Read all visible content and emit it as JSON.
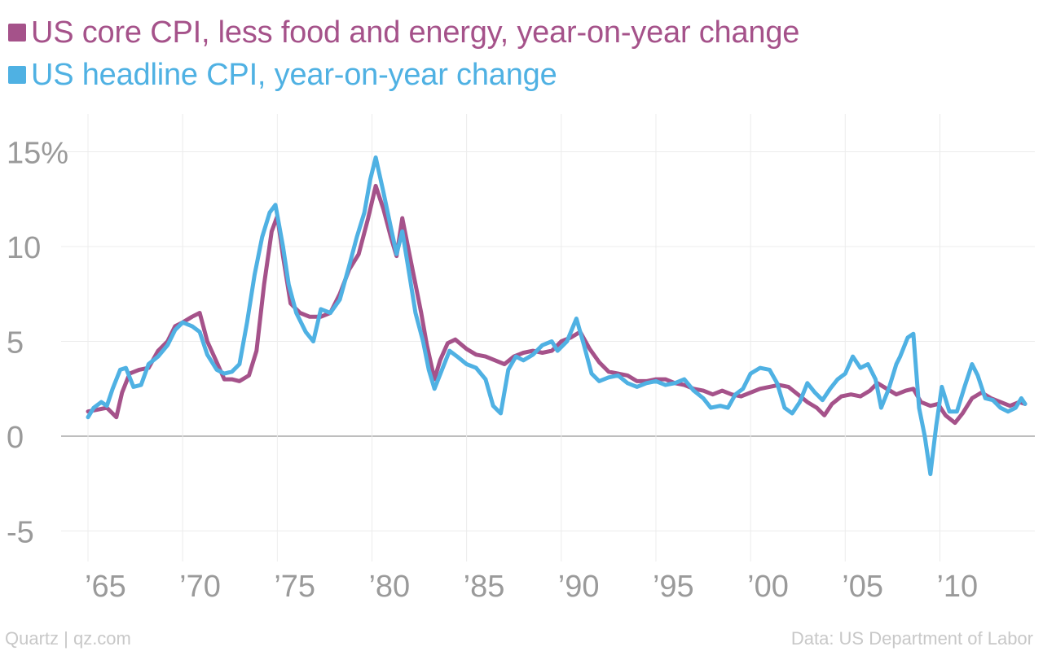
{
  "legend": [
    {
      "label": "US core CPI, less food and energy, year-on-year change",
      "color": "#a5528a"
    },
    {
      "label": "US headline CPI, year-on-year change",
      "color": "#4fb1e3"
    }
  ],
  "footer": {
    "source_left": "Quartz | qz.com",
    "source_right": "Data: US Department of Labor"
  },
  "chart_data": {
    "type": "line",
    "title": "",
    "xlabel": "",
    "ylabel": "",
    "xlim": [
      1965,
      2014.5
    ],
    "ylim": [
      -7,
      16
    ],
    "y_ticks": [
      15,
      10,
      5,
      0,
      -5
    ],
    "y_tick_labels": [
      "15%",
      "10",
      "5",
      "0",
      "-5"
    ],
    "x_ticks": [
      1965,
      1970,
      1975,
      1980,
      1985,
      1990,
      1995,
      2000,
      2005,
      2010
    ],
    "x_tick_labels": [
      "’65",
      "’70",
      "’75",
      "’80",
      "’85",
      "’90",
      "’95",
      "’00",
      "’05",
      "’10"
    ],
    "grid": true,
    "legend_position": "top-left",
    "series": [
      {
        "name": "US core CPI, less food and energy, year-on-year change",
        "color": "#a5528a",
        "points": [
          [
            1965.0,
            1.3
          ],
          [
            1965.5,
            1.4
          ],
          [
            1966.0,
            1.5
          ],
          [
            1966.5,
            1.0
          ],
          [
            1966.8,
            2.3
          ],
          [
            1967.2,
            3.3
          ],
          [
            1967.7,
            3.5
          ],
          [
            1968.2,
            3.6
          ],
          [
            1968.7,
            4.5
          ],
          [
            1969.2,
            5.0
          ],
          [
            1969.6,
            5.8
          ],
          [
            1970.0,
            6.0
          ],
          [
            1970.5,
            6.3
          ],
          [
            1970.9,
            6.5
          ],
          [
            1971.3,
            5.0
          ],
          [
            1971.8,
            3.9
          ],
          [
            1972.2,
            3.0
          ],
          [
            1972.6,
            3.0
          ],
          [
            1973.0,
            2.9
          ],
          [
            1973.5,
            3.2
          ],
          [
            1973.9,
            4.5
          ],
          [
            1974.3,
            8.0
          ],
          [
            1974.7,
            10.8
          ],
          [
            1975.0,
            11.6
          ],
          [
            1975.3,
            9.5
          ],
          [
            1975.7,
            7.0
          ],
          [
            1976.2,
            6.5
          ],
          [
            1976.7,
            6.3
          ],
          [
            1977.3,
            6.3
          ],
          [
            1977.8,
            6.5
          ],
          [
            1978.3,
            7.5
          ],
          [
            1978.8,
            8.8
          ],
          [
            1979.3,
            9.6
          ],
          [
            1979.8,
            11.5
          ],
          [
            1980.2,
            13.2
          ],
          [
            1980.6,
            12.0
          ],
          [
            1981.0,
            10.5
          ],
          [
            1981.3,
            9.5
          ],
          [
            1981.6,
            11.5
          ],
          [
            1981.8,
            10.5
          ],
          [
            1982.2,
            8.5
          ],
          [
            1982.6,
            6.5
          ],
          [
            1982.9,
            4.8
          ],
          [
            1983.3,
            3.0
          ],
          [
            1983.6,
            4.0
          ],
          [
            1984.0,
            4.9
          ],
          [
            1984.4,
            5.1
          ],
          [
            1985.0,
            4.6
          ],
          [
            1985.5,
            4.3
          ],
          [
            1986.0,
            4.2
          ],
          [
            1986.5,
            4.0
          ],
          [
            1987.0,
            3.8
          ],
          [
            1987.5,
            4.2
          ],
          [
            1988.0,
            4.4
          ],
          [
            1988.5,
            4.5
          ],
          [
            1989.0,
            4.4
          ],
          [
            1989.5,
            4.5
          ],
          [
            1990.0,
            5.0
          ],
          [
            1990.5,
            5.2
          ],
          [
            1991.0,
            5.5
          ],
          [
            1991.5,
            4.6
          ],
          [
            1992.0,
            3.9
          ],
          [
            1992.5,
            3.4
          ],
          [
            1993.0,
            3.3
          ],
          [
            1993.5,
            3.2
          ],
          [
            1994.0,
            2.9
          ],
          [
            1994.5,
            2.9
          ],
          [
            1995.0,
            3.0
          ],
          [
            1995.5,
            3.0
          ],
          [
            1996.0,
            2.8
          ],
          [
            1996.5,
            2.7
          ],
          [
            1997.0,
            2.5
          ],
          [
            1997.5,
            2.4
          ],
          [
            1998.0,
            2.2
          ],
          [
            1998.5,
            2.4
          ],
          [
            1999.0,
            2.2
          ],
          [
            1999.5,
            2.1
          ],
          [
            2000.0,
            2.3
          ],
          [
            2000.5,
            2.5
          ],
          [
            2001.0,
            2.6
          ],
          [
            2001.5,
            2.7
          ],
          [
            2002.0,
            2.6
          ],
          [
            2002.5,
            2.2
          ],
          [
            2003.0,
            1.8
          ],
          [
            2003.5,
            1.5
          ],
          [
            2003.9,
            1.1
          ],
          [
            2004.3,
            1.7
          ],
          [
            2004.8,
            2.1
          ],
          [
            2005.3,
            2.2
          ],
          [
            2005.8,
            2.1
          ],
          [
            2006.3,
            2.4
          ],
          [
            2006.7,
            2.8
          ],
          [
            2007.2,
            2.5
          ],
          [
            2007.7,
            2.2
          ],
          [
            2008.2,
            2.4
          ],
          [
            2008.6,
            2.5
          ],
          [
            2009.0,
            1.8
          ],
          [
            2009.5,
            1.6
          ],
          [
            2009.9,
            1.7
          ],
          [
            2010.3,
            1.1
          ],
          [
            2010.8,
            0.7
          ],
          [
            2011.2,
            1.2
          ],
          [
            2011.7,
            2.0
          ],
          [
            2012.2,
            2.3
          ],
          [
            2012.7,
            2.0
          ],
          [
            2013.2,
            1.8
          ],
          [
            2013.7,
            1.6
          ],
          [
            2014.2,
            1.8
          ],
          [
            2014.5,
            1.7
          ]
        ]
      },
      {
        "name": "US headline CPI, year-on-year change",
        "color": "#4fb1e3",
        "points": [
          [
            1965.0,
            1.0
          ],
          [
            1965.3,
            1.5
          ],
          [
            1965.7,
            1.8
          ],
          [
            1966.0,
            1.6
          ],
          [
            1966.3,
            2.5
          ],
          [
            1966.7,
            3.5
          ],
          [
            1967.0,
            3.6
          ],
          [
            1967.4,
            2.6
          ],
          [
            1967.8,
            2.7
          ],
          [
            1968.2,
            3.8
          ],
          [
            1968.7,
            4.2
          ],
          [
            1969.2,
            4.8
          ],
          [
            1969.6,
            5.6
          ],
          [
            1970.0,
            6.0
          ],
          [
            1970.5,
            5.8
          ],
          [
            1970.9,
            5.5
          ],
          [
            1971.3,
            4.3
          ],
          [
            1971.8,
            3.5
          ],
          [
            1972.2,
            3.3
          ],
          [
            1972.6,
            3.4
          ],
          [
            1973.0,
            3.8
          ],
          [
            1973.4,
            6.0
          ],
          [
            1973.8,
            8.5
          ],
          [
            1974.2,
            10.5
          ],
          [
            1974.6,
            11.8
          ],
          [
            1974.9,
            12.2
          ],
          [
            1975.3,
            10.0
          ],
          [
            1975.6,
            8.0
          ],
          [
            1976.0,
            6.5
          ],
          [
            1976.5,
            5.5
          ],
          [
            1976.9,
            5.0
          ],
          [
            1977.3,
            6.7
          ],
          [
            1977.8,
            6.5
          ],
          [
            1978.3,
            7.2
          ],
          [
            1978.8,
            9.0
          ],
          [
            1979.2,
            10.5
          ],
          [
            1979.6,
            11.8
          ],
          [
            1979.9,
            13.5
          ],
          [
            1980.2,
            14.7
          ],
          [
            1980.6,
            12.9
          ],
          [
            1981.0,
            11.0
          ],
          [
            1981.3,
            9.6
          ],
          [
            1981.6,
            10.8
          ],
          [
            1981.9,
            9.0
          ],
          [
            1982.3,
            6.5
          ],
          [
            1982.7,
            5.0
          ],
          [
            1983.0,
            3.5
          ],
          [
            1983.3,
            2.5
          ],
          [
            1983.7,
            3.5
          ],
          [
            1984.1,
            4.5
          ],
          [
            1984.5,
            4.2
          ],
          [
            1985.0,
            3.8
          ],
          [
            1985.5,
            3.6
          ],
          [
            1986.0,
            3.0
          ],
          [
            1986.4,
            1.6
          ],
          [
            1986.8,
            1.2
          ],
          [
            1987.2,
            3.5
          ],
          [
            1987.6,
            4.2
          ],
          [
            1988.0,
            4.0
          ],
          [
            1988.5,
            4.3
          ],
          [
            1989.0,
            4.8
          ],
          [
            1989.5,
            5.0
          ],
          [
            1989.8,
            4.5
          ],
          [
            1990.3,
            5.0
          ],
          [
            1990.8,
            6.2
          ],
          [
            1991.2,
            4.8
          ],
          [
            1991.6,
            3.3
          ],
          [
            1992.0,
            2.9
          ],
          [
            1992.5,
            3.1
          ],
          [
            1993.0,
            3.2
          ],
          [
            1993.5,
            2.8
          ],
          [
            1994.0,
            2.6
          ],
          [
            1994.5,
            2.8
          ],
          [
            1995.0,
            2.9
          ],
          [
            1995.5,
            2.7
          ],
          [
            1996.0,
            2.8
          ],
          [
            1996.5,
            3.0
          ],
          [
            1997.0,
            2.4
          ],
          [
            1997.5,
            2.0
          ],
          [
            1997.9,
            1.5
          ],
          [
            1998.4,
            1.6
          ],
          [
            1998.8,
            1.5
          ],
          [
            1999.2,
            2.2
          ],
          [
            1999.6,
            2.5
          ],
          [
            2000.0,
            3.3
          ],
          [
            2000.5,
            3.6
          ],
          [
            2001.0,
            3.5
          ],
          [
            2001.4,
            2.8
          ],
          [
            2001.8,
            1.5
          ],
          [
            2002.2,
            1.2
          ],
          [
            2002.6,
            1.8
          ],
          [
            2003.0,
            2.8
          ],
          [
            2003.4,
            2.3
          ],
          [
            2003.8,
            1.9
          ],
          [
            2004.2,
            2.5
          ],
          [
            2004.6,
            3.0
          ],
          [
            2005.0,
            3.3
          ],
          [
            2005.4,
            4.2
          ],
          [
            2005.8,
            3.6
          ],
          [
            2006.2,
            3.8
          ],
          [
            2006.6,
            3.0
          ],
          [
            2006.9,
            1.5
          ],
          [
            2007.3,
            2.5
          ],
          [
            2007.7,
            3.8
          ],
          [
            2007.9,
            4.2
          ],
          [
            2008.3,
            5.2
          ],
          [
            2008.6,
            5.4
          ],
          [
            2008.9,
            1.5
          ],
          [
            2009.2,
            0.0
          ],
          [
            2009.5,
            -2.0
          ],
          [
            2009.8,
            0.5
          ],
          [
            2010.1,
            2.6
          ],
          [
            2010.5,
            1.3
          ],
          [
            2010.9,
            1.3
          ],
          [
            2011.3,
            2.6
          ],
          [
            2011.7,
            3.8
          ],
          [
            2012.0,
            3.2
          ],
          [
            2012.4,
            2.0
          ],
          [
            2012.8,
            1.9
          ],
          [
            2013.2,
            1.5
          ],
          [
            2013.6,
            1.3
          ],
          [
            2014.0,
            1.5
          ],
          [
            2014.3,
            2.0
          ],
          [
            2014.5,
            1.7
          ]
        ]
      }
    ]
  }
}
